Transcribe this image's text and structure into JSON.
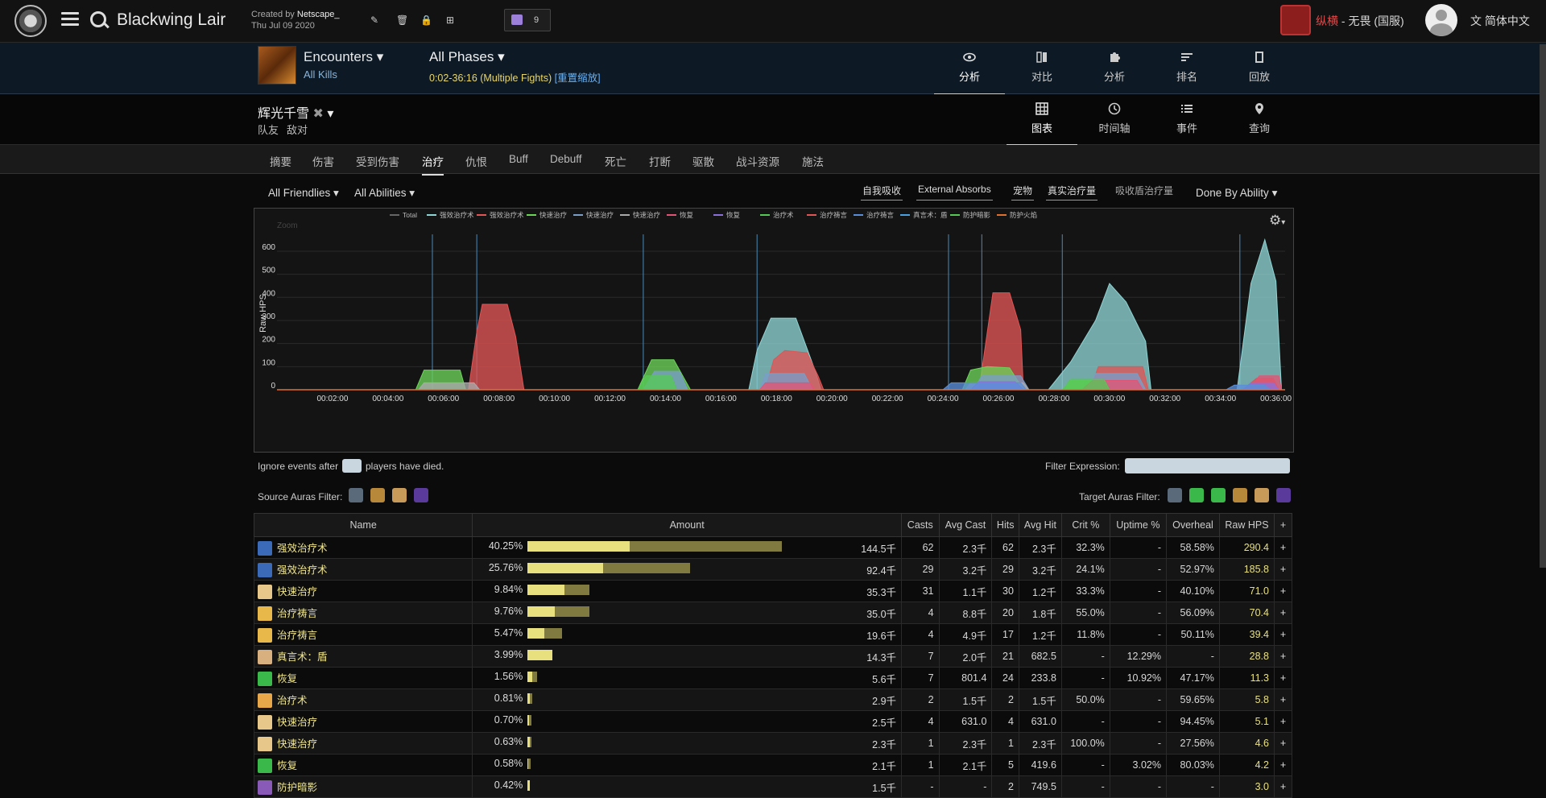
{
  "topbar": {
    "zone_title": "Blackwing Lair",
    "created_prefix": "Created by",
    "created_by": "Netscape_",
    "created_date": "Thu Jul 09 2020",
    "twitch_count": "9",
    "player_faction_name": "纵横",
    "player_rest": " - 无畏 (国服)",
    "language": "简体中文"
  },
  "report": {
    "encounters_label": "Encounters",
    "all_kills": "All Kills",
    "all_phases": "All Phases",
    "time_range": "0:02-36:16 (Multiple Fights)",
    "reset_zoom": "[重置缩放]",
    "view_tabs": [
      "分析",
      "对比",
      "分析",
      "排名",
      "回放"
    ]
  },
  "actor": {
    "name": "辉光千雪",
    "sub_items": [
      "队友",
      "敌对"
    ],
    "view_tabs": [
      "图表",
      "时间轴",
      "事件",
      "查询"
    ]
  },
  "nav_tabs": [
    "摘要",
    "伤害",
    "受到伤害",
    "治疗",
    "仇恨",
    "Buff",
    "Debuff",
    "死亡",
    "打断",
    "驱散",
    "战斗资源",
    "施法"
  ],
  "filters": {
    "friendlies": "All Friendlies",
    "abilities": "All Abilities",
    "toggles": [
      "自我吸收",
      "External Absorbs",
      "宠物",
      "真实治疗量",
      "吸收盾治疗量"
    ],
    "done_by": "Done By Ability",
    "ignore_prefix": "Ignore events after",
    "ignore_suffix": "players have died.",
    "filter_expression": "Filter Expression:",
    "source_auras": "Source Auras Filter:",
    "target_auras": "Target Auras Filter:"
  },
  "chart_data": {
    "type": "area",
    "ylabel": "Raw HPS",
    "zoom_label": "Zoom",
    "yticks": [
      0,
      100,
      200,
      300,
      400,
      500,
      600
    ],
    "ylim": [
      0,
      680
    ],
    "xlim": [
      "00:00:00",
      "00:36:20"
    ],
    "xticks": [
      "00:02:00",
      "00:04:00",
      "00:06:00",
      "00:08:00",
      "00:10:00",
      "00:12:00",
      "00:14:00",
      "00:16:00",
      "00:18:00",
      "00:20:00",
      "00:22:00",
      "00:24:00",
      "00:26:00",
      "00:28:00",
      "00:30:00",
      "00:32:00",
      "00:34:00",
      "00:36:00"
    ],
    "legend": [
      {
        "name": "Total",
        "color": "#666666"
      },
      {
        "name": "强效治疗术",
        "color": "#8fd4d4"
      },
      {
        "name": "强效治疗术",
        "color": "#e05555"
      },
      {
        "name": "快速治疗",
        "color": "#6dd45a"
      },
      {
        "name": "快速治疗",
        "color": "#7a9ec8"
      },
      {
        "name": "快速治疗",
        "color": "#aaaaaa"
      },
      {
        "name": "恢复",
        "color": "#e05575"
      },
      {
        "name": "恢复",
        "color": "#8a70d8"
      },
      {
        "name": "治疗术",
        "color": "#56c856"
      },
      {
        "name": "治疗祷言",
        "color": "#e05555"
      },
      {
        "name": "治疗祷言",
        "color": "#5a8ed8"
      },
      {
        "name": "真言术：盾",
        "color": "#4aa0e0"
      },
      {
        "name": "防护暗影",
        "color": "#56c856"
      },
      {
        "name": "防护火焰",
        "color": "#e07030"
      }
    ],
    "markers_minutes": [
      5.6,
      7.2,
      13.2,
      17.3,
      24.2,
      25.4,
      28.3,
      34.7
    ],
    "series": [
      {
        "name": "强效治疗术",
        "color": "#8fd4d4",
        "points": [
          [
            17.0,
            0
          ],
          [
            17.3,
            170
          ],
          [
            17.8,
            310
          ],
          [
            18.7,
            310
          ],
          [
            19.4,
            80
          ],
          [
            19.6,
            0
          ],
          [
            27.8,
            0
          ],
          [
            28.6,
            120
          ],
          [
            29.5,
            300
          ],
          [
            30.0,
            460
          ],
          [
            30.6,
            380
          ],
          [
            31.3,
            210
          ],
          [
            31.5,
            0
          ],
          [
            34.6,
            0
          ],
          [
            35.1,
            460
          ],
          [
            35.6,
            650
          ],
          [
            36.0,
            470
          ],
          [
            36.2,
            0
          ]
        ]
      },
      {
        "name": "强效治疗术",
        "color": "#e05555",
        "points": [
          [
            6.9,
            0
          ],
          [
            7.2,
            250
          ],
          [
            7.4,
            370
          ],
          [
            8.3,
            370
          ],
          [
            8.6,
            230
          ],
          [
            8.9,
            0
          ],
          [
            17.6,
            0
          ],
          [
            17.9,
            130
          ],
          [
            18.3,
            170
          ],
          [
            19.1,
            160
          ],
          [
            19.5,
            60
          ],
          [
            19.7,
            0
          ],
          [
            25.3,
            0
          ],
          [
            25.8,
            420
          ],
          [
            26.4,
            420
          ],
          [
            26.8,
            260
          ],
          [
            26.9,
            0
          ],
          [
            29.3,
            0
          ],
          [
            29.6,
            100
          ],
          [
            31.2,
            100
          ],
          [
            31.4,
            0
          ],
          [
            34.8,
            0
          ],
          [
            35.3,
            50
          ],
          [
            35.9,
            50
          ],
          [
            36.1,
            0
          ]
        ]
      },
      {
        "name": "快速治疗",
        "color": "#6dd45a",
        "points": [
          [
            5.0,
            0
          ],
          [
            5.3,
            85
          ],
          [
            6.6,
            85
          ],
          [
            6.8,
            0
          ],
          [
            13.0,
            0
          ],
          [
            13.5,
            130
          ],
          [
            14.3,
            130
          ],
          [
            14.9,
            0
          ],
          [
            24.7,
            0
          ],
          [
            25.0,
            85
          ],
          [
            25.6,
            100
          ],
          [
            26.4,
            95
          ],
          [
            26.9,
            0
          ],
          [
            28.4,
            0
          ],
          [
            28.6,
            40
          ],
          [
            29.6,
            40
          ],
          [
            29.8,
            0
          ]
        ]
      },
      {
        "name": "快速治疗",
        "color": "#7a9ec8",
        "points": [
          [
            13.2,
            0
          ],
          [
            13.6,
            80
          ],
          [
            14.5,
            80
          ],
          [
            14.8,
            0
          ],
          [
            17.4,
            0
          ],
          [
            17.6,
            70
          ],
          [
            19.0,
            70
          ],
          [
            19.3,
            0
          ],
          [
            25.1,
            0
          ],
          [
            25.4,
            60
          ],
          [
            26.8,
            60
          ],
          [
            27.1,
            0
          ],
          [
            29.2,
            0
          ],
          [
            29.5,
            70
          ],
          [
            31.0,
            70
          ],
          [
            31.3,
            0
          ]
        ]
      },
      {
        "name": "快速治疗",
        "color": "#aaaaaa",
        "points": [
          [
            5.1,
            0
          ],
          [
            5.3,
            30
          ],
          [
            7.1,
            30
          ],
          [
            7.3,
            0
          ],
          [
            24.8,
            0
          ],
          [
            25.0,
            30
          ],
          [
            26.9,
            30
          ],
          [
            27.1,
            0
          ]
        ]
      },
      {
        "name": "恢复",
        "color": "#e05575",
        "points": [
          [
            17.4,
            0
          ],
          [
            17.6,
            30
          ],
          [
            19.2,
            30
          ],
          [
            19.4,
            0
          ],
          [
            29.0,
            0
          ],
          [
            29.4,
            40
          ],
          [
            31.0,
            40
          ],
          [
            31.2,
            0
          ],
          [
            35.0,
            0
          ],
          [
            35.4,
            60
          ],
          [
            36.1,
            60
          ],
          [
            36.2,
            0
          ]
        ]
      },
      {
        "name": "恢复",
        "color": "#8a70d8",
        "points": [
          [
            25.0,
            0
          ],
          [
            25.3,
            35
          ],
          [
            26.6,
            35
          ],
          [
            26.9,
            0
          ],
          [
            34.8,
            0
          ],
          [
            35.1,
            30
          ],
          [
            35.9,
            30
          ],
          [
            36.1,
            0
          ]
        ]
      },
      {
        "name": "治疗术",
        "color": "#56c856",
        "points": [
          [
            13.0,
            0
          ],
          [
            13.3,
            60
          ],
          [
            14.2,
            60
          ],
          [
            14.4,
            0
          ],
          [
            28.3,
            0
          ],
          [
            28.6,
            45
          ],
          [
            29.8,
            45
          ],
          [
            30.0,
            0
          ]
        ]
      },
      {
        "name": "治疗祷言",
        "color": "#5a8ed8",
        "points": [
          [
            24.0,
            0
          ],
          [
            24.3,
            30
          ],
          [
            26.8,
            30
          ],
          [
            27.0,
            0
          ],
          [
            34.2,
            0
          ],
          [
            34.5,
            20
          ],
          [
            35.6,
            20
          ],
          [
            35.8,
            0
          ]
        ]
      }
    ]
  },
  "table": {
    "headers": [
      "Name",
      "Amount",
      "Casts",
      "Avg Cast",
      "Hits",
      "Avg Hit",
      "Crit %",
      "Uptime %",
      "Overheal",
      "Raw HPS",
      "+"
    ],
    "rows": [
      {
        "name": "强效治疗术",
        "icon_color": "#3a6ab8",
        "pct": "40.25%",
        "eff": 40.25,
        "raw": 100,
        "amount": "144.5千",
        "casts": "62",
        "avg_cast": "2.3千",
        "hits": "62",
        "avg_hit": "2.3千",
        "crit": "32.3%",
        "uptime": "-",
        "overheal": "58.58%",
        "raw_hps": "290.4",
        "plus": "+"
      },
      {
        "name": "强效治疗术",
        "icon_color": "#3a6ab8",
        "pct": "25.76%",
        "eff": 29.9,
        "raw": 64,
        "amount": "92.4千",
        "casts": "29",
        "avg_cast": "3.2千",
        "hits": "29",
        "avg_hit": "3.2千",
        "crit": "24.1%",
        "uptime": "-",
        "overheal": "52.97%",
        "raw_hps": "185.8",
        "plus": "+"
      },
      {
        "name": "快速治疗",
        "icon_color": "#e8c88a",
        "pct": "9.84%",
        "eff": 14.4,
        "raw": 24.5,
        "amount": "35.3千",
        "casts": "31",
        "avg_cast": "1.1千",
        "hits": "30",
        "avg_hit": "1.2千",
        "crit": "33.3%",
        "uptime": "-",
        "overheal": "40.10%",
        "raw_hps": "71.0",
        "plus": "+"
      },
      {
        "name": "治疗祷言",
        "icon_color": "#e8b84a",
        "pct": "9.76%",
        "eff": 10.8,
        "raw": 24.3,
        "amount": "35.0千",
        "casts": "4",
        "avg_cast": "8.8千",
        "hits": "20",
        "avg_hit": "1.8千",
        "crit": "55.0%",
        "uptime": "-",
        "overheal": "56.09%",
        "raw_hps": "70.4",
        "plus": "+"
      },
      {
        "name": "治疗祷言",
        "icon_color": "#e8b84a",
        "pct": "5.47%",
        "eff": 6.7,
        "raw": 13.6,
        "amount": "19.6千",
        "casts": "4",
        "avg_cast": "4.9千",
        "hits": "17",
        "avg_hit": "1.2千",
        "crit": "11.8%",
        "uptime": "-",
        "overheal": "50.11%",
        "raw_hps": "39.4",
        "plus": "+"
      },
      {
        "name": "真言术：盾",
        "icon_color": "#d8b080",
        "pct": "3.99%",
        "eff": 9.9,
        "raw": 9.9,
        "amount": "14.3千",
        "casts": "7",
        "avg_cast": "2.0千",
        "hits": "21",
        "avg_hit": "682.5",
        "crit": "-",
        "uptime": "12.29%",
        "overheal": "-",
        "raw_hps": "28.8",
        "plus": "+"
      },
      {
        "name": "恢复",
        "icon_color": "#3ab84a",
        "pct": "1.56%",
        "eff": 2.0,
        "raw": 3.9,
        "amount": "5.6千",
        "casts": "7",
        "avg_cast": "801.4",
        "hits": "24",
        "avg_hit": "233.8",
        "crit": "-",
        "uptime": "10.92%",
        "overheal": "47.17%",
        "raw_hps": "11.3",
        "plus": "+"
      },
      {
        "name": "治疗术",
        "icon_color": "#e8a84a",
        "pct": "0.81%",
        "eff": 0.8,
        "raw": 2.0,
        "amount": "2.9千",
        "casts": "2",
        "avg_cast": "1.5千",
        "hits": "2",
        "avg_hit": "1.5千",
        "crit": "50.0%",
        "uptime": "-",
        "overheal": "59.65%",
        "raw_hps": "5.8",
        "plus": "+"
      },
      {
        "name": "快速治疗",
        "icon_color": "#e8c88a",
        "pct": "0.70%",
        "eff": 0.5,
        "raw": 1.7,
        "amount": "2.5千",
        "casts": "4",
        "avg_cast": "631.0",
        "hits": "4",
        "avg_hit": "631.0",
        "crit": "-",
        "uptime": "-",
        "overheal": "94.45%",
        "raw_hps": "5.1",
        "plus": "+"
      },
      {
        "name": "快速治疗",
        "icon_color": "#e8c88a",
        "pct": "0.63%",
        "eff": 1.0,
        "raw": 1.6,
        "amount": "2.3千",
        "casts": "1",
        "avg_cast": "2.3千",
        "hits": "1",
        "avg_hit": "2.3千",
        "crit": "100.0%",
        "uptime": "-",
        "overheal": "27.56%",
        "raw_hps": "4.6",
        "plus": "+"
      },
      {
        "name": "恢复",
        "icon_color": "#3ab84a",
        "pct": "0.58%",
        "eff": 0.3,
        "raw": 1.4,
        "amount": "2.1千",
        "casts": "1",
        "avg_cast": "2.1千",
        "hits": "5",
        "avg_hit": "419.6",
        "crit": "-",
        "uptime": "3.02%",
        "overheal": "80.03%",
        "raw_hps": "4.2",
        "plus": "+"
      },
      {
        "name": "防护暗影",
        "icon_color": "#8a5ab8",
        "pct": "0.42%",
        "eff": 1.0,
        "raw": 1.0,
        "amount": "1.5千",
        "casts": "-",
        "avg_cast": "-",
        "hits": "2",
        "avg_hit": "749.5",
        "crit": "-",
        "uptime": "-",
        "overheal": "-",
        "raw_hps": "3.0",
        "plus": "+"
      }
    ]
  }
}
